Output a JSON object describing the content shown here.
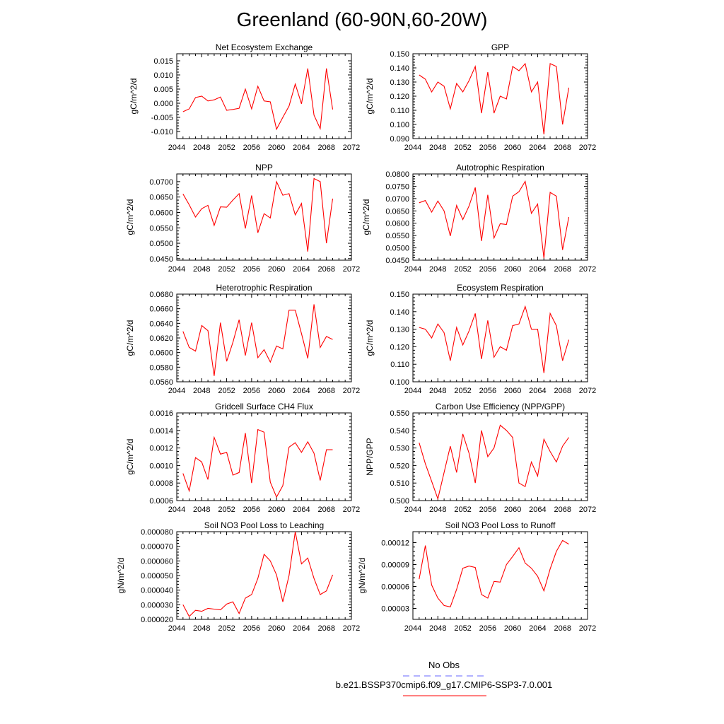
{
  "title": "Greenland (60-90N,60-20W)",
  "legend": {
    "entries": [
      {
        "label": "No Obs",
        "color": "#6666ff",
        "dash": true
      },
      {
        "label": "b.e21.BSSP370cmip6.f09_g17.CMIP6-SSP3-7.0.001",
        "color": "#ff0000",
        "dash": false
      }
    ]
  },
  "chart_data": [
    {
      "type": "line",
      "title": "Net Ecosystem Exchange",
      "ylabel": "gC/m^2/d",
      "xlim": [
        2044,
        2072
      ],
      "xticks": [
        2044,
        2048,
        2052,
        2056,
        2060,
        2064,
        2068,
        2072
      ],
      "ylim": [
        -0.0125,
        0.0175
      ],
      "yticks": [
        -0.01,
        -0.005,
        0.0,
        0.005,
        0.01,
        0.015
      ],
      "ydecimals": 3,
      "series": [
        {
          "color": "#ff0000",
          "x": [
            2045,
            2046,
            2047,
            2048,
            2049,
            2050,
            2051,
            2052,
            2053,
            2054,
            2055,
            2056,
            2057,
            2058,
            2059,
            2060,
            2061,
            2062,
            2063,
            2064,
            2065,
            2066,
            2067,
            2068,
            2069
          ],
          "y": [
            -0.003,
            -0.002,
            0.002,
            0.0025,
            0.0008,
            0.0012,
            0.0022,
            -0.0025,
            -0.0022,
            -0.0018,
            0.005,
            -0.002,
            0.006,
            0.0008,
            0.0005,
            -0.0092,
            -0.005,
            -0.001,
            0.0068,
            -0.0002,
            0.0123,
            -0.0042,
            -0.009,
            0.0123,
            -0.0022
          ]
        }
      ]
    },
    {
      "type": "line",
      "title": "GPP",
      "ylabel": "gC/m^2/d",
      "xlim": [
        2044,
        2072
      ],
      "xticks": [
        2044,
        2048,
        2052,
        2056,
        2060,
        2064,
        2068,
        2072
      ],
      "ylim": [
        0.09,
        0.15
      ],
      "yticks": [
        0.09,
        0.1,
        0.11,
        0.12,
        0.13,
        0.14,
        0.15
      ],
      "ydecimals": 3,
      "series": [
        {
          "color": "#ff0000",
          "x": [
            2045,
            2046,
            2047,
            2048,
            2049,
            2050,
            2051,
            2052,
            2053,
            2054,
            2055,
            2056,
            2057,
            2058,
            2059,
            2060,
            2061,
            2062,
            2063,
            2064,
            2065,
            2066,
            2067,
            2068,
            2069
          ],
          "y": [
            0.135,
            0.132,
            0.123,
            0.13,
            0.127,
            0.111,
            0.129,
            0.123,
            0.131,
            0.141,
            0.108,
            0.137,
            0.108,
            0.12,
            0.118,
            0.141,
            0.138,
            0.143,
            0.123,
            0.13,
            0.093,
            0.143,
            0.141,
            0.1,
            0.126
          ]
        }
      ]
    },
    {
      "type": "line",
      "title": "NPP",
      "ylabel": "gC/m^2/d",
      "xlim": [
        2044,
        2072
      ],
      "xticks": [
        2044,
        2048,
        2052,
        2056,
        2060,
        2064,
        2068,
        2072
      ],
      "ylim": [
        0.0445,
        0.0725
      ],
      "yticks": [
        0.045,
        0.05,
        0.055,
        0.06,
        0.065,
        0.07
      ],
      "ydecimals": 4,
      "series": [
        {
          "color": "#ff0000",
          "x": [
            2045,
            2046,
            2047,
            2048,
            2049,
            2050,
            2051,
            2052,
            2053,
            2054,
            2055,
            2056,
            2057,
            2058,
            2059,
            2060,
            2061,
            2062,
            2063,
            2064,
            2065,
            2066,
            2067,
            2068,
            2069
          ],
          "y": [
            0.066,
            0.0625,
            0.0585,
            0.0612,
            0.0623,
            0.0558,
            0.0618,
            0.0617,
            0.064,
            0.0661,
            0.0548,
            0.0655,
            0.0534,
            0.0596,
            0.0582,
            0.07,
            0.0656,
            0.0661,
            0.0592,
            0.0629,
            0.0473,
            0.071,
            0.07,
            0.05,
            0.0645
          ]
        }
      ]
    },
    {
      "type": "line",
      "title": "Autotrophic Respiration",
      "ylabel": "gC/m^2/d",
      "xlim": [
        2044,
        2072
      ],
      "xticks": [
        2044,
        2048,
        2052,
        2056,
        2060,
        2064,
        2068,
        2072
      ],
      "ylim": [
        0.045,
        0.08
      ],
      "yticks": [
        0.045,
        0.05,
        0.055,
        0.06,
        0.065,
        0.07,
        0.075,
        0.08
      ],
      "ydecimals": 4,
      "series": [
        {
          "color": "#ff0000",
          "x": [
            2045,
            2046,
            2047,
            2048,
            2049,
            2050,
            2051,
            2052,
            2053,
            2054,
            2055,
            2056,
            2057,
            2058,
            2059,
            2060,
            2061,
            2062,
            2063,
            2064,
            2065,
            2066,
            2067,
            2068,
            2069
          ],
          "y": [
            0.0683,
            0.0692,
            0.0645,
            0.069,
            0.065,
            0.0548,
            0.0672,
            0.0615,
            0.067,
            0.0745,
            0.0528,
            0.0715,
            0.054,
            0.0598,
            0.0595,
            0.071,
            0.0728,
            0.077,
            0.064,
            0.0678,
            0.0458,
            0.0725,
            0.071,
            0.0492,
            0.0625
          ]
        }
      ]
    },
    {
      "type": "line",
      "title": "Heterotrophic Respiration",
      "ylabel": "gC/m^2/d",
      "xlim": [
        2044,
        2072
      ],
      "xticks": [
        2044,
        2048,
        2052,
        2056,
        2060,
        2064,
        2068,
        2072
      ],
      "ylim": [
        0.056,
        0.068
      ],
      "yticks": [
        0.056,
        0.058,
        0.06,
        0.062,
        0.064,
        0.066,
        0.068
      ],
      "ydecimals": 4,
      "series": [
        {
          "color": "#ff0000",
          "x": [
            2045,
            2046,
            2047,
            2048,
            2049,
            2050,
            2051,
            2052,
            2053,
            2054,
            2055,
            2056,
            2057,
            2058,
            2059,
            2060,
            2061,
            2062,
            2063,
            2064,
            2065,
            2066,
            2067,
            2068,
            2069
          ],
          "y": [
            0.0629,
            0.0607,
            0.0602,
            0.0637,
            0.063,
            0.0568,
            0.0641,
            0.0588,
            0.0614,
            0.0645,
            0.0596,
            0.0641,
            0.0593,
            0.0604,
            0.0587,
            0.0609,
            0.0605,
            0.0658,
            0.0658,
            0.0626,
            0.0592,
            0.0666,
            0.0607,
            0.0622,
            0.0618
          ]
        }
      ]
    },
    {
      "type": "line",
      "title": "Ecosystem Respiration",
      "ylabel": "gC/m^2/d",
      "xlim": [
        2044,
        2072
      ],
      "xticks": [
        2044,
        2048,
        2052,
        2056,
        2060,
        2064,
        2068,
        2072
      ],
      "ylim": [
        0.1,
        0.15
      ],
      "yticks": [
        0.1,
        0.11,
        0.12,
        0.13,
        0.14,
        0.15
      ],
      "ydecimals": 3,
      "series": [
        {
          "color": "#ff0000",
          "x": [
            2045,
            2046,
            2047,
            2048,
            2049,
            2050,
            2051,
            2052,
            2053,
            2054,
            2055,
            2056,
            2057,
            2058,
            2059,
            2060,
            2061,
            2062,
            2063,
            2064,
            2065,
            2066,
            2067,
            2068,
            2069
          ],
          "y": [
            0.131,
            0.13,
            0.125,
            0.133,
            0.128,
            0.112,
            0.131,
            0.121,
            0.129,
            0.139,
            0.113,
            0.135,
            0.114,
            0.12,
            0.118,
            0.132,
            0.133,
            0.143,
            0.13,
            0.13,
            0.105,
            0.139,
            0.132,
            0.112,
            0.124
          ]
        }
      ]
    },
    {
      "type": "line",
      "title": "Gridcell Surface CH4 Flux",
      "ylabel": "gC/m^2/d",
      "xlim": [
        2044,
        2072
      ],
      "xticks": [
        2044,
        2048,
        2052,
        2056,
        2060,
        2064,
        2068,
        2072
      ],
      "ylim": [
        0.0006,
        0.0016
      ],
      "yticks": [
        0.0006,
        0.0008,
        0.001,
        0.0012,
        0.0014,
        0.0016
      ],
      "ydecimals": 4,
      "series": [
        {
          "color": "#ff0000",
          "x": [
            2045,
            2046,
            2047,
            2048,
            2049,
            2050,
            2051,
            2052,
            2053,
            2054,
            2055,
            2056,
            2057,
            2058,
            2059,
            2060,
            2061,
            2062,
            2063,
            2064,
            2065,
            2066,
            2067,
            2068,
            2069
          ],
          "y": [
            0.00091,
            0.00071,
            0.00109,
            0.00104,
            0.00084,
            0.00132,
            0.00113,
            0.00115,
            0.00089,
            0.00092,
            0.00137,
            0.0008,
            0.00141,
            0.00138,
            0.00081,
            0.00064,
            0.00077,
            0.00121,
            0.00126,
            0.00115,
            0.00127,
            0.00114,
            0.00083,
            0.00118,
            0.00118
          ]
        }
      ]
    },
    {
      "type": "line",
      "title": "Carbon Use Efficiency (NPP/GPP)",
      "ylabel": "NPP/GPP",
      "xlim": [
        2044,
        2072
      ],
      "xticks": [
        2044,
        2048,
        2052,
        2056,
        2060,
        2064,
        2068,
        2072
      ],
      "ylim": [
        0.5,
        0.55
      ],
      "yticks": [
        0.5,
        0.51,
        0.52,
        0.53,
        0.54,
        0.55
      ],
      "ydecimals": 3,
      "series": [
        {
          "color": "#ff0000",
          "x": [
            2045,
            2046,
            2047,
            2048,
            2049,
            2050,
            2051,
            2052,
            2053,
            2054,
            2055,
            2056,
            2057,
            2058,
            2059,
            2060,
            2061,
            2062,
            2063,
            2064,
            2065,
            2066,
            2067,
            2068,
            2069
          ],
          "y": [
            0.533,
            0.521,
            0.511,
            0.501,
            0.516,
            0.531,
            0.516,
            0.538,
            0.527,
            0.51,
            0.54,
            0.525,
            0.53,
            0.543,
            0.54,
            0.536,
            0.51,
            0.508,
            0.522,
            0.514,
            0.535,
            0.528,
            0.522,
            0.531,
            0.536
          ]
        }
      ]
    },
    {
      "type": "line",
      "title": "Soil NO3 Pool Loss to Leaching",
      "ylabel": "gN/m^2/d",
      "xlim": [
        2044,
        2072
      ],
      "xticks": [
        2044,
        2048,
        2052,
        2056,
        2060,
        2064,
        2068,
        2072
      ],
      "ylim": [
        2e-05,
        8e-05
      ],
      "yticks": [
        2e-05,
        3e-05,
        4e-05,
        5e-05,
        6e-05,
        7e-05,
        8e-05
      ],
      "ydecimals": 6,
      "series": [
        {
          "color": "#ff0000",
          "x": [
            2045,
            2046,
            2047,
            2048,
            2049,
            2050,
            2051,
            2052,
            2053,
            2054,
            2055,
            2056,
            2057,
            2058,
            2059,
            2060,
            2061,
            2062,
            2063,
            2064,
            2065,
            2066,
            2067,
            2068,
            2069
          ],
          "y": [
            3e-05,
            2.2e-05,
            2.62e-05,
            2.55e-05,
            2.75e-05,
            2.7e-05,
            2.65e-05,
            3.05e-05,
            3.2e-05,
            2.4e-05,
            3.45e-05,
            3.7e-05,
            4.8e-05,
            6.45e-05,
            6e-05,
            5.05e-05,
            3.2e-05,
            5e-05,
            8e-05,
            5.8e-05,
            6.2e-05,
            4.8e-05,
            3.7e-05,
            3.95e-05,
            5.05e-05
          ]
        }
      ]
    },
    {
      "type": "line",
      "title": "Soil NO3 Pool Loss to Runoff",
      "ylabel": "gN/m^2/d",
      "xlim": [
        2044,
        2072
      ],
      "xticks": [
        2044,
        2048,
        2052,
        2056,
        2060,
        2064,
        2068,
        2072
      ],
      "ylim": [
        1.5e-05,
        0.000135
      ],
      "yticks": [
        3e-05,
        6e-05,
        9e-05,
        0.00012
      ],
      "ydecimals": 5,
      "series": [
        {
          "color": "#ff0000",
          "x": [
            2045,
            2046,
            2047,
            2048,
            2049,
            2050,
            2051,
            2052,
            2053,
            2054,
            2055,
            2056,
            2057,
            2058,
            2059,
            2060,
            2061,
            2062,
            2063,
            2064,
            2065,
            2066,
            2067,
            2068,
            2069
          ],
          "y": [
            7e-05,
            0.000116,
            6.2e-05,
            4.4e-05,
            3.4e-05,
            3.2e-05,
            5.6e-05,
            8.5e-05,
            8.8e-05,
            8.6e-05,
            4.9e-05,
            4.4e-05,
            6.7e-05,
            6.6e-05,
            9e-05,
            0.000101,
            0.000113,
            9.2e-05,
            8.5e-05,
            7.4e-05,
            5.4e-05,
            8.4e-05,
            0.000108,
            0.000123,
            0.000118
          ]
        }
      ]
    }
  ]
}
